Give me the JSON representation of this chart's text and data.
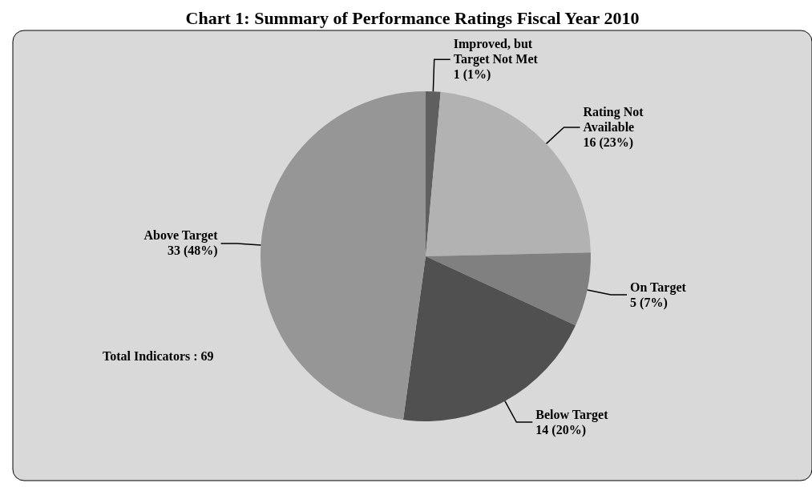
{
  "chart_data": {
    "type": "pie",
    "title": "Chart 1: Summary of Performance Ratings Fiscal Year 2010",
    "categories": [
      "Improved, but Target Not Met",
      "Rating Not Available",
      "On Target",
      "Below Target",
      "Above Target"
    ],
    "values": [
      1,
      16,
      5,
      14,
      33
    ],
    "value_labels": [
      "1 (1%)",
      "16 (23%)",
      "5 (7%)",
      "14 (20%)",
      "33 (48%)"
    ],
    "colors": [
      "#5f5f5f",
      "#b2b2b2",
      "#808080",
      "#505050",
      "#969696"
    ],
    "annotations": [
      "Total Indicators : 69"
    ]
  }
}
